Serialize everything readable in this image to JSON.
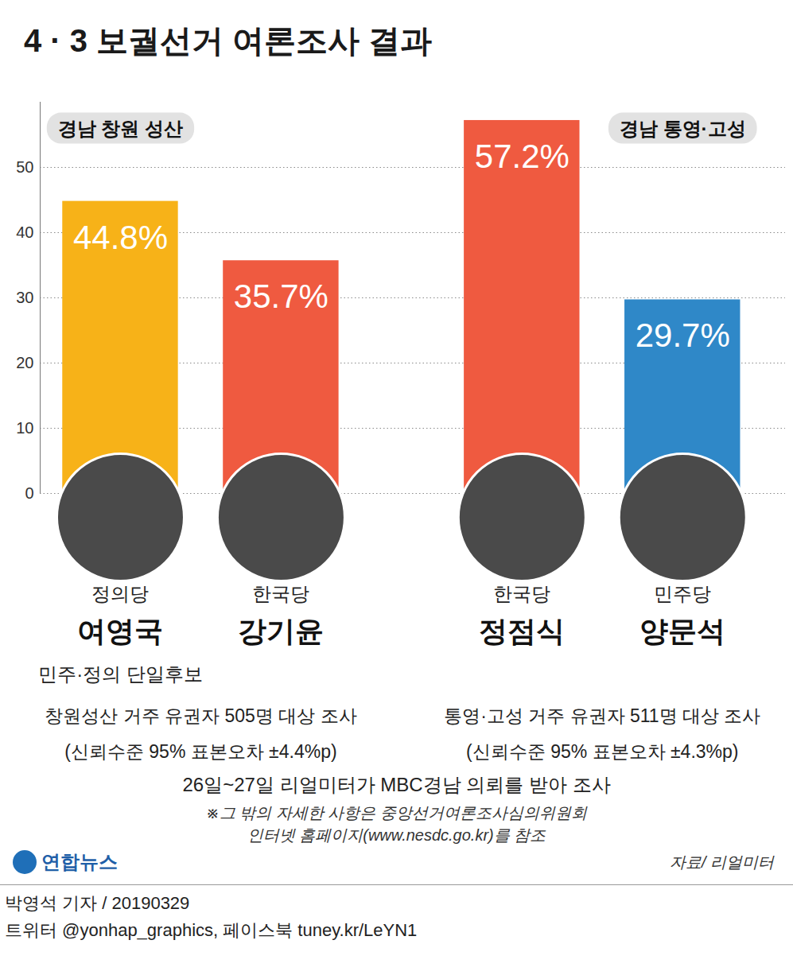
{
  "chart_data": {
    "type": "bar",
    "title": "4 · 3 보궐선거 여론조사 결과",
    "categories": [
      "여영국",
      "강기윤",
      "정점식",
      "양문석"
    ],
    "values": [
      44.8,
      35.7,
      57.2,
      29.7
    ],
    "value_labels": [
      "44.8%",
      "35.7%",
      "57.2%",
      "29.7%"
    ],
    "colors": [
      "#f7b218",
      "#ef5a40",
      "#ef5a40",
      "#2f88c8"
    ],
    "parties": [
      "정의당",
      "한국당",
      "한국당",
      "민주당"
    ],
    "annotations": [
      {
        "category": "여영국",
        "text": "민주·정의 단일후보"
      }
    ],
    "panels": [
      {
        "title": "경남 창원 성산",
        "categories": [
          "여영국",
          "강기윤"
        ],
        "notes": [
          "창원성산 거주 유권자 505명 대상 조사",
          "(신뢰수준 95% 표본오차 ±4.4%p)"
        ]
      },
      {
        "title": "경남 통영·고성",
        "categories": [
          "정점식",
          "양문석"
        ],
        "notes": [
          "통영·고성 거주 유권자 511명 대상 조사",
          "(신뢰수준 95% 표본오차 ±4.3%p)"
        ]
      }
    ],
    "ylim": [
      0,
      60
    ],
    "yticks": [
      0,
      10,
      20,
      30,
      40,
      50
    ],
    "grid": true,
    "data_labels": true,
    "tick_labels": "y",
    "source_note": "26일~27일 리얼미터가 MBC경남 의뢰를 받아 조사",
    "footnote": [
      "※그 밖의 자세한 사항은 중앙선거여론조사심의위원회",
      "인터넷 홈페이지(www.nesdc.go.kr)를 참조"
    ],
    "logo": "연합뉴스",
    "source": "자료/ 리얼미터",
    "credits": [
      "박영석 기자 / 20190329",
      "트위터 @yonhap_graphics, 페이스북 tuney.kr/LeYN1"
    ]
  }
}
